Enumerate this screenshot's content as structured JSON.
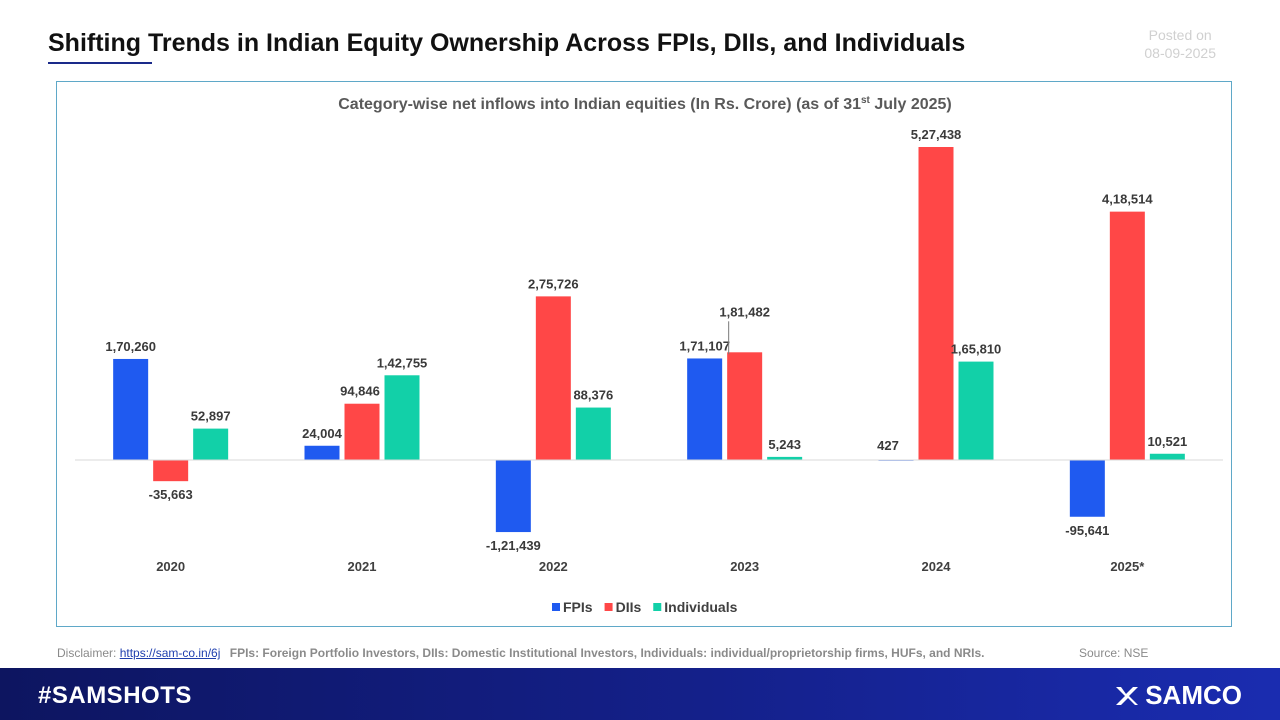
{
  "header": {
    "title": "Shifting Trends in Indian Equity Ownership Across FPIs, DIIs, and Individuals",
    "posted_label": "Posted on",
    "posted_date": "08-09-2025"
  },
  "chart_data": {
    "type": "bar",
    "title_main": "Category-wise net inflows into Indian equities  (In Rs. Crore) (as of 31",
    "title_sup": "st",
    "title_end": " July 2025)",
    "categories": [
      "2020",
      "2021",
      "2022",
      "2023",
      "2024",
      "2025*"
    ],
    "series": [
      {
        "name": "FPIs",
        "color": "#1f5af0",
        "values": [
          170260,
          24004,
          -121439,
          171107,
          427,
          -95641
        ],
        "labels": [
          "1,70,260",
          "24,004",
          "-1,21,439",
          "1,71,107",
          "427",
          "-95,641"
        ]
      },
      {
        "name": "DIIs",
        "color": "#ff4747",
        "values": [
          -35663,
          94846,
          275726,
          181482,
          527438,
          418514
        ],
        "labels": [
          "-35,663",
          "94,846",
          "2,75,726",
          "1,81,482",
          "5,27,438",
          "4,18,514"
        ]
      },
      {
        "name": "Individuals",
        "color": "#12d0a8",
        "values": [
          52897,
          142755,
          88376,
          5243,
          165810,
          10521
        ],
        "labels": [
          "52,897",
          "1,42,755",
          "88,376",
          "5,243",
          "1,65,810",
          "10,521"
        ]
      }
    ],
    "ylim": [
      -150000,
      560000
    ],
    "grid": false,
    "legend": "bottom-center"
  },
  "footer": {
    "disclaimer_label": "Disclaimer:",
    "disclaimer_link": "https://sam-co.in/6j",
    "definitions": "FPIs: Foreign Portfolio Investors, DIIs: Domestic Institutional Investors, Individuals: individual/proprietorship firms, HUFs, and NRIs.",
    "source": "Source: NSE",
    "hashtag": "#SAMSHOTS",
    "brand": "SAMCO"
  }
}
